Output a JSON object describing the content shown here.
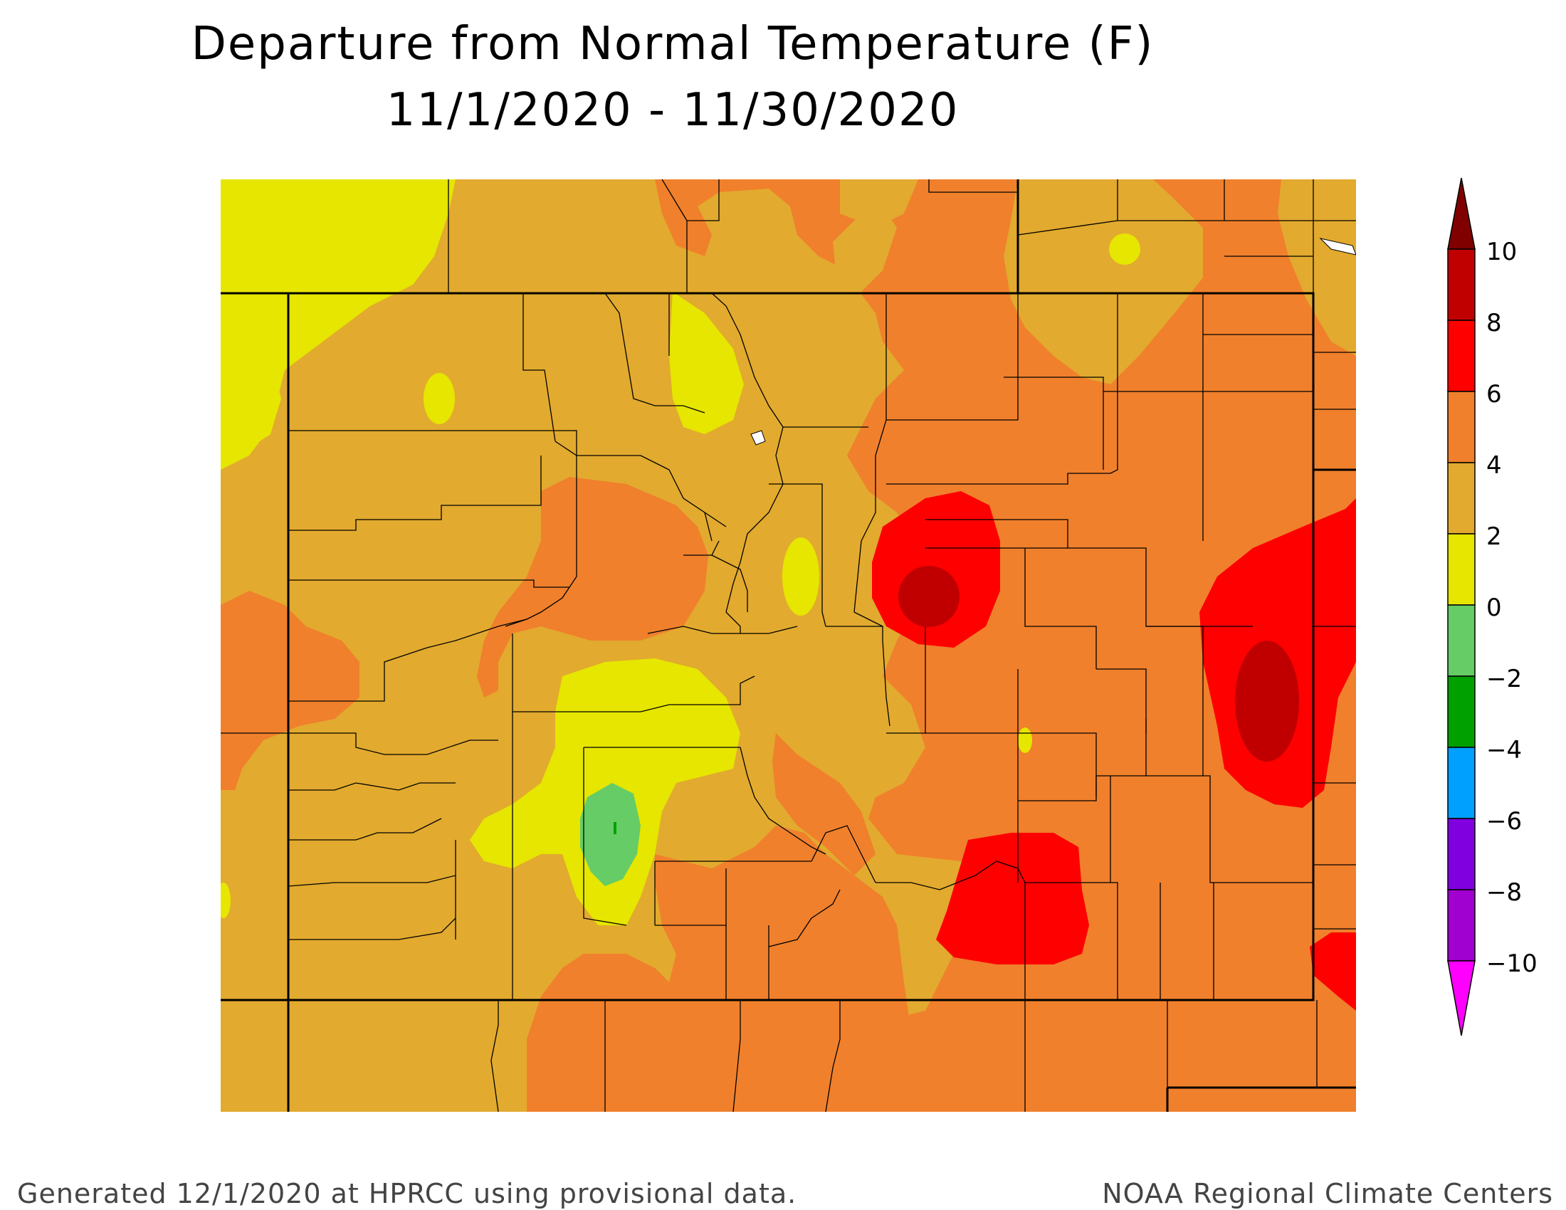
{
  "title": {
    "line1": "Departure from Normal Temperature (F)",
    "line2": "11/1/2020 - 11/30/2020"
  },
  "legend": {
    "tick_labels": [
      "10",
      "8",
      "6",
      "4",
      "2",
      "0",
      "−2",
      "−4",
      "−6",
      "−8",
      "−10"
    ],
    "bins": [
      {
        "range": "above 10",
        "color": "#800000"
      },
      {
        "range": "8 to 10",
        "color": "#c00000"
      },
      {
        "range": "6 to 8",
        "color": "#ff0000"
      },
      {
        "range": "4 to 6",
        "color": "#f0802c"
      },
      {
        "range": "2 to 4",
        "color": "#e2aa2e"
      },
      {
        "range": "0 to 2",
        "color": "#e6e600"
      },
      {
        "range": "-2 to 0",
        "color": "#66cc66"
      },
      {
        "range": "-4 to -2",
        "color": "#00a000"
      },
      {
        "range": "-6 to -4",
        "color": "#00a0ff"
      },
      {
        "range": "-8 to -6",
        "color": "#8000e0"
      },
      {
        "range": "-10 to -8",
        "color": "#a000d0"
      },
      {
        "range": "below -10",
        "color": "#ff00ff"
      }
    ]
  },
  "map": {
    "region": "Colorado",
    "colors": {
      "band_0_2": "#e6e600",
      "band_2_4": "#e2aa2e",
      "band_4_6": "#f0802c",
      "band_6_8": "#ff0000",
      "band_8_10": "#c00000",
      "band_neg2_0": "#66cc66",
      "band_neg4_neg2": "#00a000",
      "boundary": "#000000",
      "water": "#ffffff"
    }
  },
  "footer": {
    "left": "Generated 12/1/2020 at HPRCC using provisional data.",
    "right": "NOAA Regional Climate Centers"
  }
}
